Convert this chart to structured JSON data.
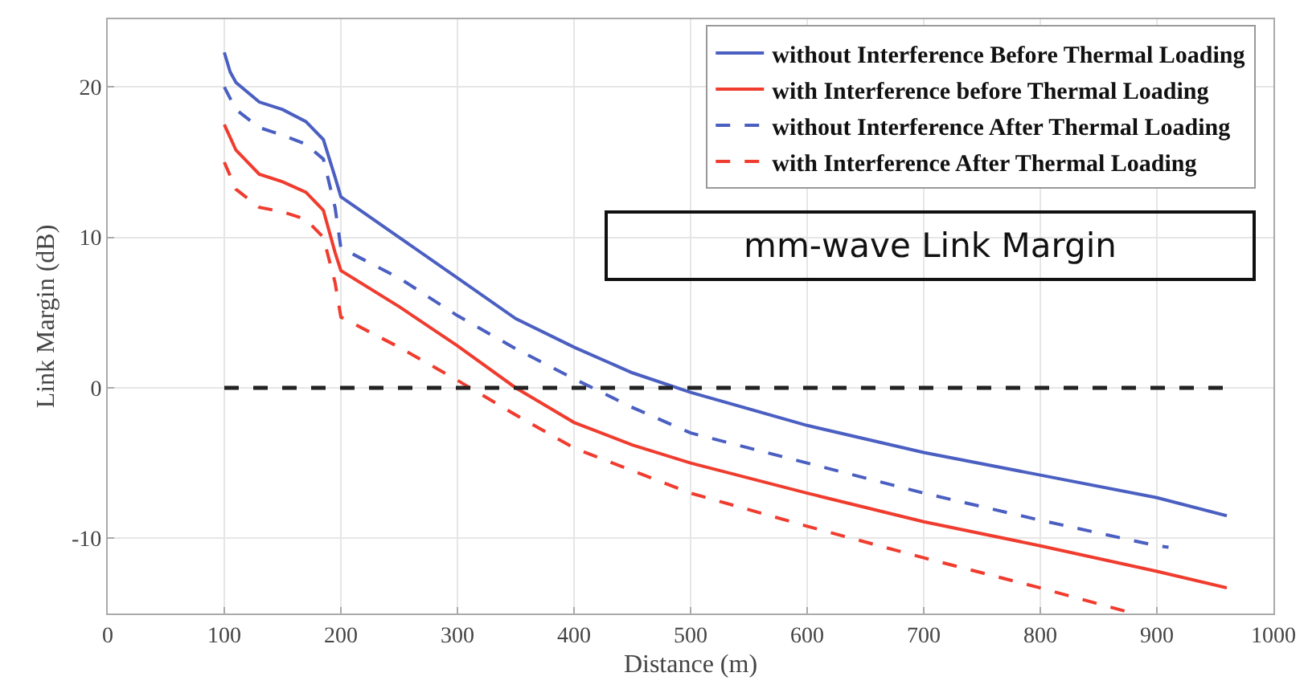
{
  "chart_data": {
    "type": "line",
    "xlabel": "Distance (m)",
    "ylabel": "Link Margin (dB)",
    "annotations": [
      "mm-wave Link Margin"
    ],
    "xlim": [
      0,
      1000
    ],
    "xticks": [
      0,
      100,
      200,
      300,
      400,
      500,
      600,
      700,
      800,
      900,
      1000
    ],
    "ylim": [
      -15,
      24.5
    ],
    "yticks": [
      -10,
      0,
      10,
      20
    ],
    "grid": true,
    "legend": "top right",
    "marker": "none",
    "series": [
      {
        "name": "without Interference Before Thermal Loading",
        "color": "#4a5fc1",
        "line_style": "solid",
        "x": [
          100,
          105,
          110,
          130,
          150,
          170,
          185,
          195,
          200,
          250,
          300,
          350,
          400,
          450,
          500,
          600,
          700,
          800,
          900,
          960
        ],
        "values": [
          22.3,
          21,
          20.3,
          19,
          18.5,
          17.7,
          16.5,
          14,
          12.7,
          10,
          7.3,
          4.6,
          2.7,
          1,
          -0.3,
          -2.5,
          -4.3,
          -5.8,
          -7.3,
          -8.5
        ]
      },
      {
        "name": "with Interference before Thermal Loading",
        "color": "#f03c2e",
        "line_style": "solid",
        "x": [
          100,
          110,
          130,
          150,
          170,
          185,
          195,
          200,
          250,
          300,
          350,
          400,
          450,
          500,
          600,
          700,
          800,
          900,
          960
        ],
        "values": [
          17.5,
          15.8,
          14.2,
          13.7,
          13,
          11.8,
          9,
          7.8,
          5.4,
          2.8,
          0,
          -2.3,
          -3.8,
          -5,
          -7,
          -8.9,
          -10.5,
          -12.2,
          -13.3
        ]
      },
      {
        "name": "without Interference After Thermal Loading",
        "color": "#4a5fc1",
        "line_style": "dashed",
        "x": [
          100,
          110,
          130,
          150,
          170,
          185,
          195,
          200,
          250,
          300,
          350,
          400,
          450,
          500,
          600,
          700,
          800,
          900,
          910
        ],
        "values": [
          20,
          18.5,
          17.3,
          16.8,
          16.2,
          15.2,
          12,
          9.3,
          7.3,
          4.8,
          2.6,
          0.6,
          -1.3,
          -3,
          -5,
          -7,
          -8.8,
          -10.5,
          -10.6
        ]
      },
      {
        "name": "with Interference After Thermal Loading",
        "color": "#f03c2e",
        "line_style": "dashed",
        "x": [
          100,
          110,
          130,
          150,
          170,
          185,
          195,
          200,
          250,
          300,
          350,
          400,
          450,
          500,
          600,
          700,
          800,
          880
        ],
        "values": [
          15,
          13.2,
          12,
          11.7,
          11.2,
          10,
          7,
          4.7,
          2.7,
          0.5,
          -1.8,
          -4,
          -5.5,
          -7,
          -9.2,
          -11.3,
          -13.3,
          -15
        ]
      }
    ],
    "ref_lines": [
      {
        "axis": "y",
        "value": 0,
        "color": "#222222",
        "line_style": "dashed"
      }
    ]
  }
}
